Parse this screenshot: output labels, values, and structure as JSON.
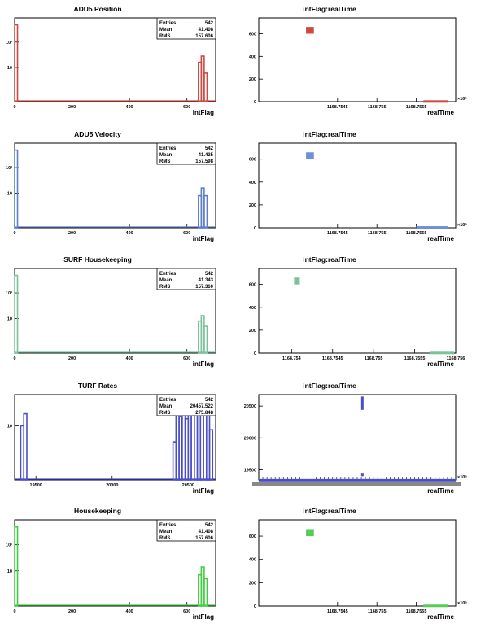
{
  "canvas_bg": "#ffffff",
  "panels": [
    {
      "title": "ADU5 Position",
      "stats": {
        "entries_label": "Entries",
        "entries": "542",
        "mean_label": "Mean",
        "mean": "41.408",
        "rms_label": "RMS",
        "rms": "157.606"
      },
      "chart_data": {
        "type": "bar",
        "xlabel": "intFlag",
        "xlim": [
          0,
          700
        ],
        "x_ticks": [
          "0",
          "200",
          "400",
          "600"
        ],
        "y_scale": "log",
        "y_ticks": [
          "10",
          "10²"
        ],
        "color": "#cc4a44",
        "bins": [
          {
            "x": 0,
            "v": 480
          },
          {
            "x": 640,
            "v": 16
          },
          {
            "x": 650,
            "v": 28
          },
          {
            "x": 660,
            "v": 6
          }
        ]
      }
    },
    {
      "title": "intFlag:realTime",
      "chart_data": {
        "type": "scatter",
        "xlabel": "realTime",
        "xlim": [
          1168.7535,
          1168.756
        ],
        "x_ticks": [
          "1168.7545",
          "1168.755",
          "1168.7555"
        ],
        "x_multiplier": "×10⁶",
        "ylim": [
          0,
          740
        ],
        "y_ticks": [
          "0",
          "200",
          "400",
          "600"
        ],
        "color": "#cc4a44",
        "clusters": [
          {
            "x0": 1168.7541,
            "x1": 1168.7542,
            "y0": 600,
            "y1": 660
          },
          {
            "x0": 1168.75559,
            "x1": 1168.7559,
            "y0": 0,
            "y1": 12
          }
        ]
      }
    },
    {
      "title": "ADU5 Velocity",
      "stats": {
        "entries_label": "Entries",
        "entries": "542",
        "mean_label": "Mean",
        "mean": "41.435",
        "rms_label": "RMS",
        "rms": "157.598"
      },
      "chart_data": {
        "type": "bar",
        "xlabel": "intFlag",
        "xlim": [
          0,
          700
        ],
        "x_ticks": [
          "0",
          "200",
          "400",
          "600"
        ],
        "y_scale": "log",
        "y_ticks": [
          "10",
          "10²"
        ],
        "color": "#5e7ec8",
        "bins": [
          {
            "x": 0,
            "v": 480
          },
          {
            "x": 640,
            "v": 8
          },
          {
            "x": 650,
            "v": 16
          },
          {
            "x": 660,
            "v": 8
          }
        ]
      }
    },
    {
      "title": "intFlag:realTime",
      "chart_data": {
        "type": "scatter",
        "xlabel": "realTime",
        "xlim": [
          1168.7535,
          1168.756
        ],
        "x_ticks": [
          "1168.7545",
          "1168.755",
          "1168.7555"
        ],
        "x_multiplier": "×10⁶",
        "ylim": [
          0,
          740
        ],
        "y_ticks": [
          "0",
          "200",
          "400",
          "600"
        ],
        "color": "#6f90d8",
        "clusters": [
          {
            "x0": 1168.7541,
            "x1": 1168.7542,
            "y0": 600,
            "y1": 660
          },
          {
            "x0": 1168.7555,
            "x1": 1168.7559,
            "y0": 0,
            "y1": 14
          }
        ]
      }
    },
    {
      "title": "SURF Housekeeping",
      "stats": {
        "entries_label": "Entries",
        "entries": "542",
        "mean_label": "Mean",
        "mean": "41.343",
        "rms_label": "RMS",
        "rms": "157.360"
      },
      "chart_data": {
        "type": "bar",
        "xlabel": "intFlag",
        "xlim": [
          0,
          700
        ],
        "x_ticks": [
          "0",
          "200",
          "400",
          "600"
        ],
        "y_scale": "log",
        "y_ticks": [
          "10",
          "10²"
        ],
        "color": "#7cc19a",
        "bins": [
          {
            "x": 0,
            "v": 480
          },
          {
            "x": 640,
            "v": 8
          },
          {
            "x": 650,
            "v": 13
          },
          {
            "x": 660,
            "v": 5
          }
        ]
      }
    },
    {
      "title": "intFlag:realTime",
      "chart_data": {
        "type": "scatter",
        "xlabel": "realTime",
        "xlim": [
          1168.7536,
          1168.756
        ],
        "x_ticks": [
          "1168.754",
          "1168.7545",
          "1168.755",
          "1168.7555",
          "1168.756"
        ],
        "x_multiplier": "",
        "ylim": [
          0,
          740
        ],
        "y_ticks": [
          "0",
          "200",
          "400",
          "600"
        ],
        "color": "#7cc19a",
        "clusters": [
          {
            "x0": 1168.75403,
            "x1": 1168.7541,
            "y0": 600,
            "y1": 660
          },
          {
            "x0": 1168.75568,
            "x1": 1168.75598,
            "y0": 0,
            "y1": 12
          }
        ]
      }
    },
    {
      "title": "TURF Rates",
      "stats": {
        "entries_label": "Entries",
        "entries": "542",
        "mean_label": "Mean",
        "mean": "20457.522",
        "rms_label": "RMS",
        "rms": "275.848"
      },
      "chart_data": {
        "type": "bar",
        "xlabel": "intFlag",
        "xlim": [
          19360,
          20680
        ],
        "x_ticks": [
          "19500",
          "20000",
          "20500"
        ],
        "y_scale": "log",
        "y_ticks": [
          "10"
        ],
        "color": "#4a4fc8",
        "bins": [
          {
            "x": 19400,
            "v": 10
          },
          {
            "x": 19420,
            "v": 20
          },
          {
            "x": 20400,
            "v": 4
          },
          {
            "x": 20420,
            "v": 22
          },
          {
            "x": 20440,
            "v": 17
          },
          {
            "x": 20460,
            "v": 20
          },
          {
            "x": 20480,
            "v": 15
          },
          {
            "x": 20500,
            "v": 21
          },
          {
            "x": 20520,
            "v": 18
          },
          {
            "x": 20540,
            "v": 22
          },
          {
            "x": 20560,
            "v": 19
          },
          {
            "x": 20580,
            "v": 20
          },
          {
            "x": 20600,
            "v": 18
          },
          {
            "x": 20620,
            "v": 22
          },
          {
            "x": 20640,
            "v": 8
          }
        ]
      }
    },
    {
      "title": "intFlag:realTime",
      "chart_data": {
        "type": "scatter",
        "xlabel": "realTime",
        "xlim": [
          0,
          1
        ],
        "x_ticks": [],
        "x_multiplier": "×10⁶",
        "ylim": [
          19340,
          20680
        ],
        "y_ticks": [
          "19500",
          "20000",
          "20500"
        ],
        "color": "#4a4fc8",
        "clusters": [
          {
            "x0": 0.52,
            "x1": 0.53,
            "y0": 20440,
            "y1": 20650
          },
          {
            "x0": 0.52,
            "x1": 0.53,
            "y0": 19400,
            "y1": 19440
          },
          {
            "x0": 0.0,
            "x1": 1.0,
            "y0": 19340,
            "y1": 19355
          }
        ]
      }
    },
    {
      "title": "Housekeeping",
      "stats": {
        "entries_label": "Entries",
        "entries": "542",
        "mean_label": "Mean",
        "mean": "41.408",
        "rms_label": "RMS",
        "rms": "157.606"
      },
      "chart_data": {
        "type": "bar",
        "xlabel": "intFlag",
        "xlim": [
          0,
          700
        ],
        "x_ticks": [
          "0",
          "200",
          "400",
          "600"
        ],
        "y_scale": "log",
        "y_ticks": [
          "10",
          "10²"
        ],
        "color": "#44cc44",
        "bins": [
          {
            "x": 0,
            "v": 480
          },
          {
            "x": 640,
            "v": 7
          },
          {
            "x": 650,
            "v": 14
          },
          {
            "x": 660,
            "v": 5
          }
        ]
      }
    },
    {
      "title": "intFlag:realTime",
      "chart_data": {
        "type": "scatter",
        "xlabel": "realTime",
        "xlim": [
          1168.7535,
          1168.756
        ],
        "x_ticks": [
          "1168.7545",
          "1168.755",
          "1168.7555"
        ],
        "x_multiplier": "×10⁶",
        "ylim": [
          0,
          740
        ],
        "y_ticks": [
          "0",
          "200",
          "400",
          "600"
        ],
        "color": "#55cc55",
        "clusters": [
          {
            "x0": 1168.7541,
            "x1": 1168.7542,
            "y0": 600,
            "y1": 660
          },
          {
            "x0": 1168.75559,
            "x1": 1168.7559,
            "y0": 0,
            "y1": 12
          }
        ]
      }
    }
  ]
}
